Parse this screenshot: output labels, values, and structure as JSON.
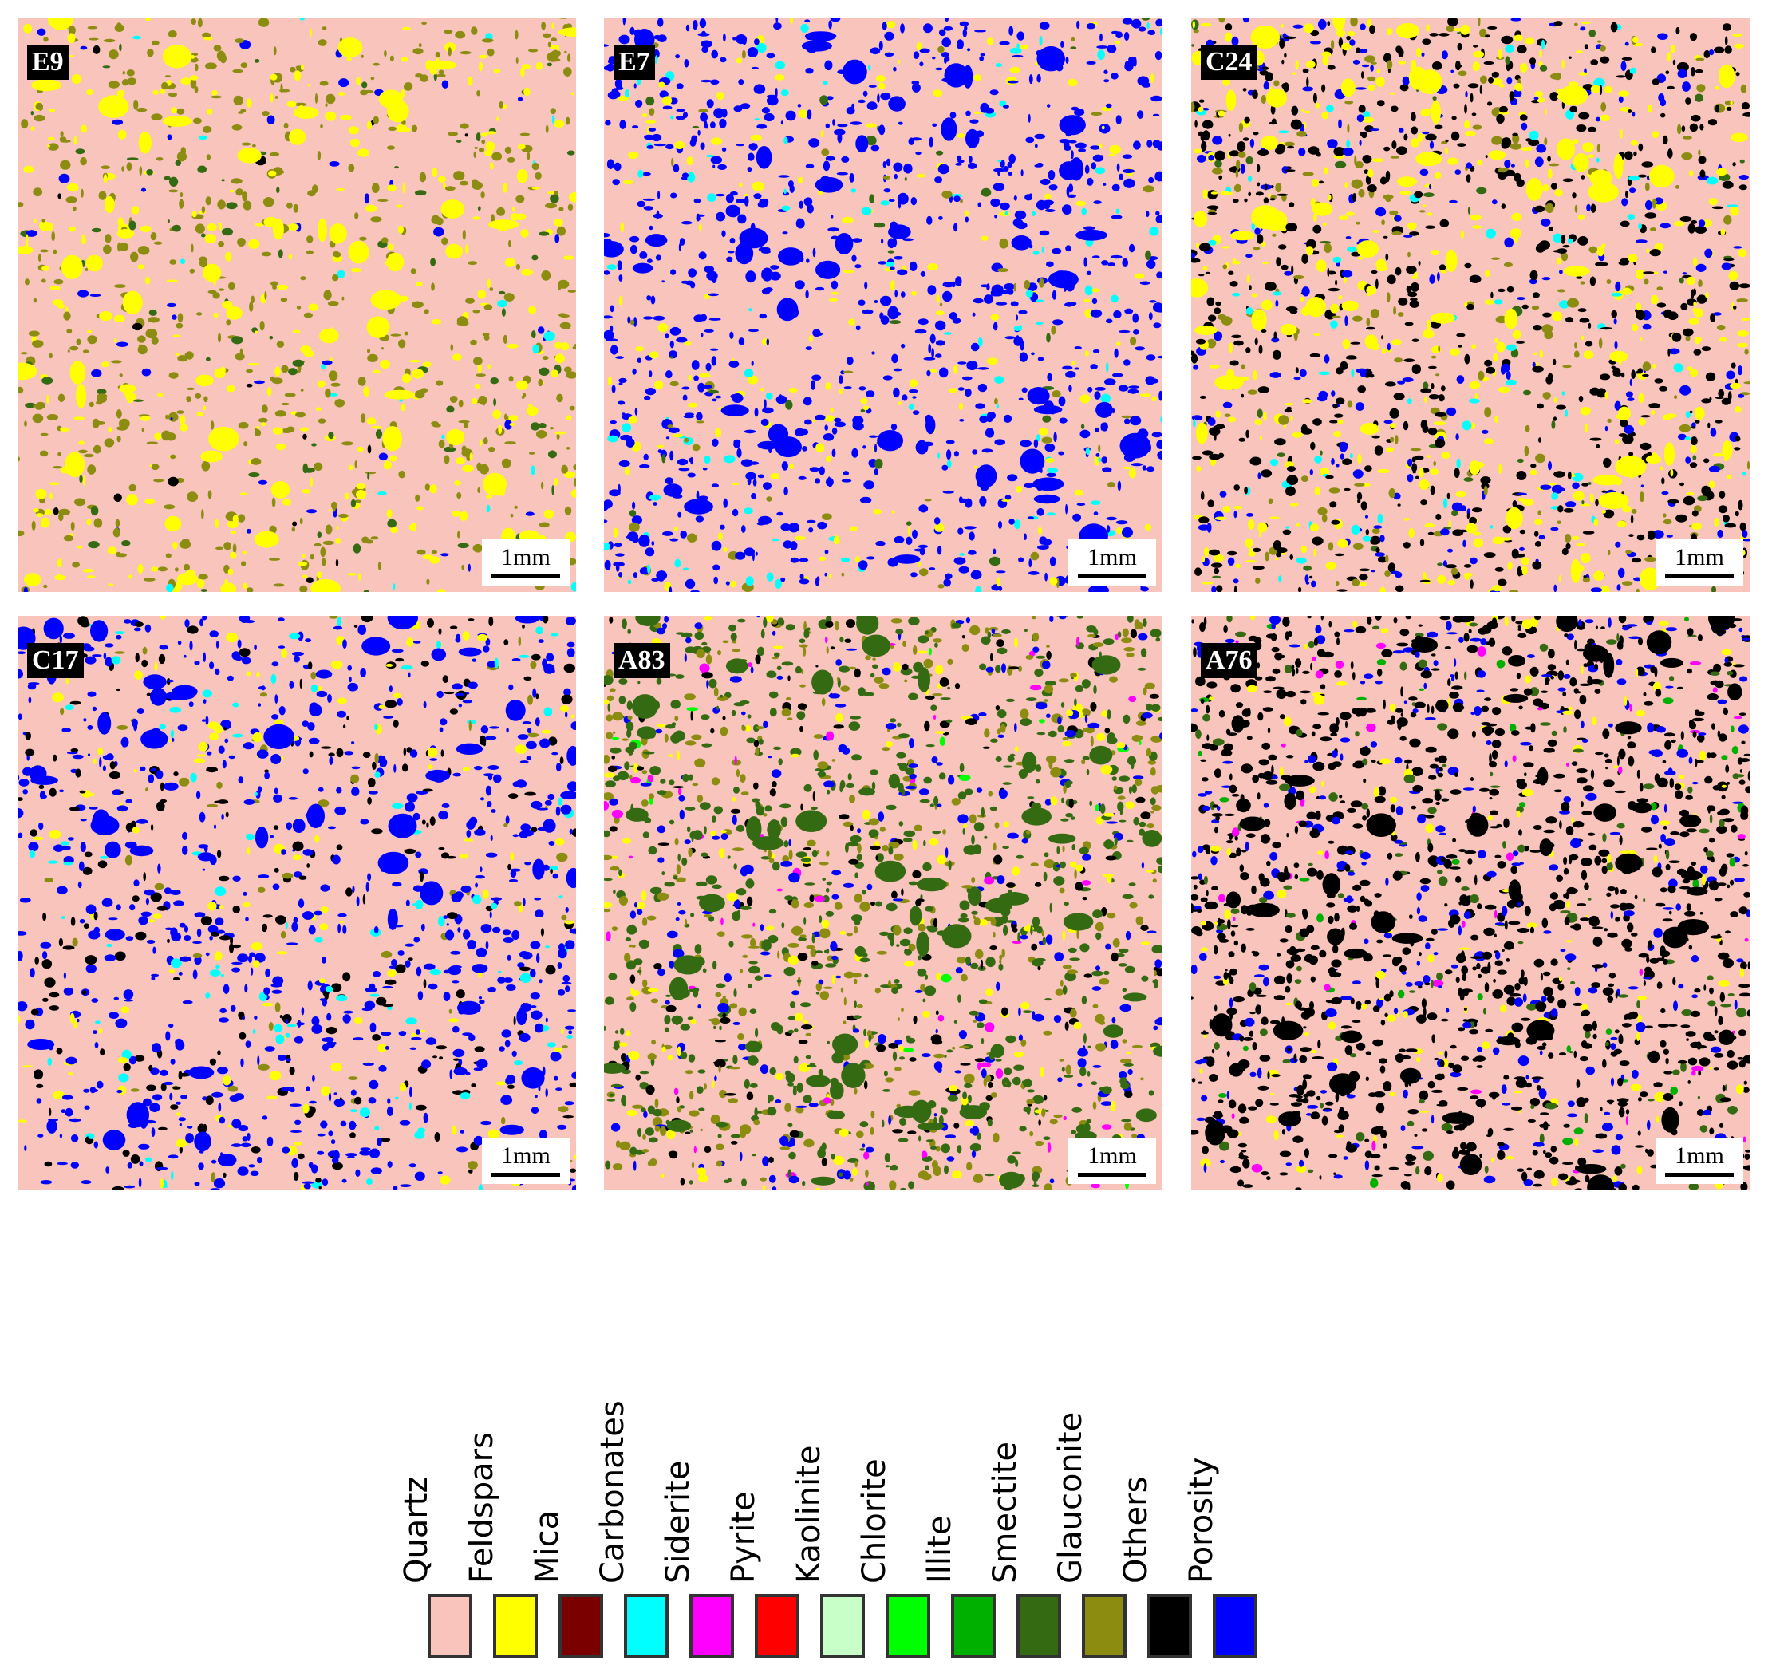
{
  "panels": [
    {
      "id": "E9",
      "label": "E9",
      "scale": "1mm"
    },
    {
      "id": "E7",
      "label": "E7",
      "scale": "1mm"
    },
    {
      "id": "C24",
      "label": "C24",
      "scale": "1mm"
    },
    {
      "id": "C17",
      "label": "C17",
      "scale": "1mm"
    },
    {
      "id": "A83",
      "label": "A83",
      "scale": "1mm"
    },
    {
      "id": "A76",
      "label": "A76",
      "scale": "1mm"
    }
  ],
  "legend": [
    {
      "label": "Quartz",
      "color": "#f8c4bc"
    },
    {
      "label": "Feldspars",
      "color": "#ffff00"
    },
    {
      "label": "Mica",
      "color": "#7a0000"
    },
    {
      "label": "Carbonates",
      "color": "#00ffff"
    },
    {
      "label": "Siderite",
      "color": "#ff00ff"
    },
    {
      "label": "Pyrite",
      "color": "#ff0000"
    },
    {
      "label": "Kaolinite",
      "color": "#c8ffc8"
    },
    {
      "label": "Chlorite",
      "color": "#00ff00"
    },
    {
      "label": "Illite",
      "color": "#00b000"
    },
    {
      "label": "Smectite",
      "color": "#346b12"
    },
    {
      "label": "Glauconite",
      "color": "#8c8c10"
    },
    {
      "label": "Others",
      "color": "#000000"
    },
    {
      "label": "Porosity",
      "color": "#0000ff"
    }
  ]
}
